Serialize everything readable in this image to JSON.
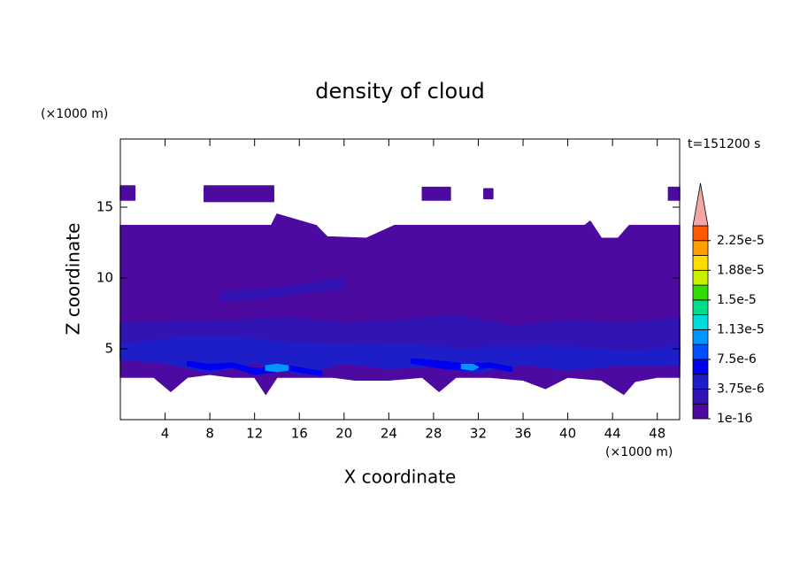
{
  "chart_data": {
    "type": "contour",
    "title": "density of cloud",
    "x_label": "X coordinate",
    "y_label": "Z coordinate",
    "x_unit": "(×1000 m)",
    "y_unit": "(×1000 m)",
    "annotation": "t=151200 s",
    "xlim": [
      0,
      50
    ],
    "ylim": [
      0,
      20
    ],
    "xticks": [
      4,
      8,
      12,
      16,
      20,
      24,
      28,
      32,
      36,
      40,
      44,
      48
    ],
    "yticks": [
      5,
      10,
      15
    ],
    "levels": [
      1e-16,
      1.875e-06,
      3.75e-06,
      5.625e-06,
      7.5e-06,
      9.375e-06,
      1.125e-05,
      1.3125e-05,
      1.5e-05,
      1.6875e-05,
      1.875e-05,
      2.0625e-05,
      2.25e-05,
      2.4375e-05
    ],
    "colors": [
      "#4c0aa0",
      "#3214b4",
      "#1e1ec8",
      "#0000f0",
      "#0050ff",
      "#0096ff",
      "#00dcdc",
      "#00dc8c",
      "#32dc00",
      "#c8f000",
      "#ffdc00",
      "#ffa000",
      "#ff5a00",
      "#f01414"
    ],
    "overflow_color": "#f4a6a6",
    "colorbar_ticks": [
      {
        "value": 1e-16,
        "label": "1e-16"
      },
      {
        "value": 3.75e-06,
        "label": "3.75e-6"
      },
      {
        "value": 7.5e-06,
        "label": "7.5e-6"
      },
      {
        "value": 1.125e-05,
        "label": "1.13e-5"
      },
      {
        "value": 1.5e-05,
        "label": "1.5e-5"
      },
      {
        "value": 1.875e-05,
        "label": "1.88e-5"
      },
      {
        "value": 2.25e-05,
        "label": "2.25e-5"
      }
    ],
    "regions": [
      {
        "level": 1e-16,
        "x": [
          0,
          3,
          4.5,
          6,
          8,
          10,
          12,
          13,
          14,
          17,
          19,
          21,
          24,
          27,
          28.5,
          30,
          33,
          36,
          38,
          40,
          43,
          45,
          46,
          48,
          50,
          50,
          45.5,
          44.5,
          43,
          42,
          41.5,
          30,
          24.5,
          22,
          18.5,
          17.5,
          14,
          13.5,
          0
        ],
        "z": [
          3,
          3,
          2,
          3,
          3.2,
          3,
          3,
          1.8,
          3,
          3,
          3,
          2.8,
          2.8,
          3,
          2,
          3,
          3,
          2.8,
          2.2,
          3,
          2.8,
          1.8,
          2.7,
          3,
          3,
          13.7,
          13.7,
          12.8,
          12.8,
          14,
          13.7,
          13.7,
          13.7,
          12.8,
          12.9,
          13.7,
          14.5,
          13.7,
          13.7
        ]
      },
      {
        "level": 1e-16,
        "x": [
          0,
          1.3,
          1.3,
          0
        ],
        "z": [
          15.5,
          15.5,
          16.5,
          16.5
        ]
      },
      {
        "level": 1e-16,
        "x": [
          7.5,
          13.7,
          13.7,
          7.5
        ],
        "z": [
          15.4,
          15.4,
          16.5,
          16.5
        ]
      },
      {
        "level": 1e-16,
        "x": [
          27,
          29.5,
          29.5,
          27
        ],
        "z": [
          15.5,
          15.5,
          16.4,
          16.4
        ]
      },
      {
        "level": 1e-16,
        "x": [
          32.5,
          33.3,
          33.3,
          32.5
        ],
        "z": [
          15.6,
          15.6,
          16.3,
          16.3
        ]
      },
      {
        "level": 1e-16,
        "x": [
          49,
          50,
          50,
          49
        ],
        "z": [
          15.5,
          15.5,
          16.4,
          16.4
        ]
      },
      {
        "level": 1.875e-06,
        "x": [
          0,
          5,
          10,
          15,
          20,
          25,
          30,
          35,
          40,
          45,
          50,
          50,
          45,
          40,
          35,
          30,
          25,
          20,
          15,
          10,
          5,
          0
        ],
        "z": [
          4.2,
          4.5,
          4.8,
          5.0,
          4.6,
          4.4,
          4.6,
          4.8,
          4.5,
          4.6,
          4.8,
          7.2,
          6.8,
          7.0,
          6.6,
          7.4,
          7.0,
          6.8,
          7.2,
          7.0,
          6.9,
          6.8
        ]
      },
      {
        "level": 1.875e-06,
        "x": [
          9,
          13,
          17,
          20,
          20,
          17,
          13,
          9
        ],
        "z": [
          8.4,
          8.6,
          9.0,
          9.3,
          10.0,
          9.6,
          9.2,
          9.0
        ]
      },
      {
        "level": 3.75e-06,
        "x": [
          0,
          4,
          8,
          12,
          16,
          20,
          24,
          28,
          32,
          36,
          40,
          44,
          48,
          50,
          50,
          46,
          42,
          38,
          34,
          30,
          26,
          22,
          18,
          14,
          10,
          6,
          2,
          0
        ],
        "z": [
          4.3,
          4.0,
          3.3,
          4.0,
          3.2,
          4.0,
          3.6,
          3.8,
          3.3,
          3.9,
          3.5,
          3.8,
          3.8,
          3.9,
          5.2,
          4.8,
          5.0,
          5.2,
          5.1,
          5.0,
          5.3,
          5.2,
          5.3,
          5.5,
          5.8,
          5.8,
          5.5,
          5.3
        ]
      },
      {
        "level": 5.625e-06,
        "x": [
          6,
          8,
          10,
          12,
          15,
          18,
          18,
          15,
          12,
          10,
          8,
          6
        ],
        "z": [
          3.8,
          3.5,
          3.7,
          3.2,
          3.5,
          3.1,
          3.4,
          3.8,
          3.6,
          4.0,
          3.9,
          4.1
        ]
      },
      {
        "level": 5.625e-06,
        "x": [
          26,
          29,
          31,
          33,
          35,
          35,
          33,
          31,
          29,
          26
        ],
        "z": [
          4.0,
          3.6,
          3.5,
          3.7,
          3.4,
          3.7,
          4.0,
          3.9,
          4.1,
          4.3
        ]
      },
      {
        "level": 9.375e-06,
        "x": [
          13,
          14,
          15,
          15,
          14,
          13
        ],
        "z": [
          3.5,
          3.4,
          3.5,
          3.8,
          3.9,
          3.8
        ]
      },
      {
        "level": 9.375e-06,
        "x": [
          30.5,
          31.5,
          32,
          31.5,
          30.5
        ],
        "z": [
          3.6,
          3.5,
          3.7,
          3.9,
          3.9
        ]
      }
    ]
  }
}
